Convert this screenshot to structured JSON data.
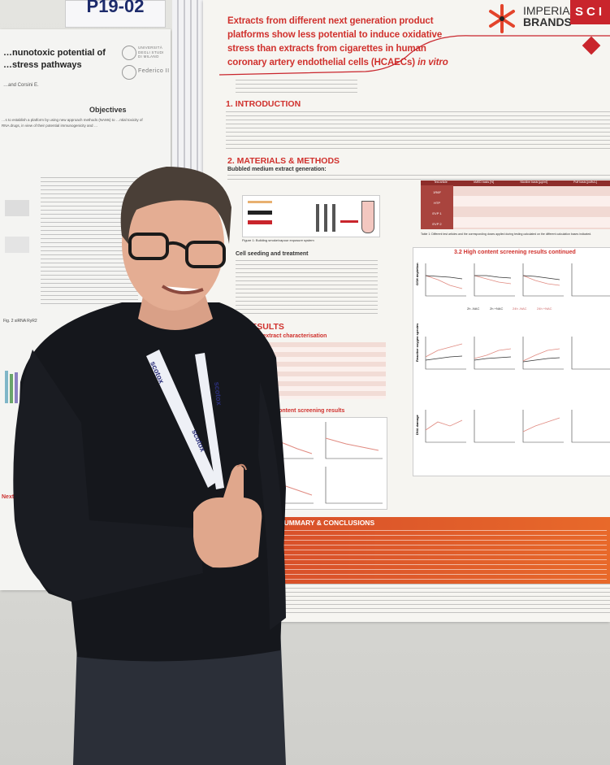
{
  "left_poster": {
    "label_number": "P19-02",
    "title_line1": "…nunotoxic potential of",
    "title_line2": "…stress pathways",
    "authors": "…and Corsini E.",
    "institution_logo_1": "Università degli Studi di Milano",
    "institution_logo_2": "Federico II",
    "objectives_heading": "Objectives",
    "objectives_text": "…s to establish a platform by using new approach methods (NAMs) to …ntial toxicity of RNA drugs, in view of their potential immunogenicity and …",
    "figure_label": "Fig. 2 siRNA RyR2",
    "next_heading": "Next st…"
  },
  "right_poster": {
    "title_line1": "Extracts from different next generation product",
    "title_line2": "platforms show less potential to induce oxidative",
    "title_line3": "stress than extracts from cigarettes in human",
    "title_line4": "coronary artery endothelial cells (HCAECs)",
    "title_italic": "in vitro",
    "brand_line1": "IMPERIAL",
    "brand_line2": "BRANDS",
    "sci_badge": "SCI",
    "section_intro": "1.  INTRODUCTION",
    "section_methods": "2. MATERIALS & METHODS",
    "methods_sub": "Bubbled medium extract generation:",
    "figure1_caption": "Figure 1: Building smoke/vapour exposure system",
    "cell_seeding_heading": "Cell seeding and treatment",
    "table1_headers": [
      "Test article",
      "bMED basis [%]",
      "Nicotine basis [µg/ml]",
      "Puff basis [puffs/L]"
    ],
    "table1_rows": [
      "1R6F",
      "HTP",
      "EVP 1",
      "EVP 2"
    ],
    "table1_caption": "Table 1: Different test articles and the corresponding doses applied during testing calculated on the different calculation bases indicated.",
    "section_results": "3. RESULTS",
    "results_sub1": "3.1 bMED extract characterisation",
    "results_sub2": "3.2 High content screening results",
    "results_sub3": "3.2 High content screening results continued",
    "axis_gsh": "GSH depletion",
    "axis_ros": "Reactive oxygen species",
    "axis_dna": "DNA damage",
    "legend": [
      "2h -NAC",
      "2h +NAC",
      "24h -NAC",
      "24h +NAC"
    ],
    "conclusions_heading": "SUMMARY & CONCLUSIONS"
  },
  "person": {
    "lanyard_text": "scotox",
    "gesture": "thumbs-up"
  },
  "colors": {
    "poster_red": "#d0312d",
    "conclusion_orange": "#e0602a",
    "shirt": "#15171c",
    "pants": "#2b2f38"
  }
}
